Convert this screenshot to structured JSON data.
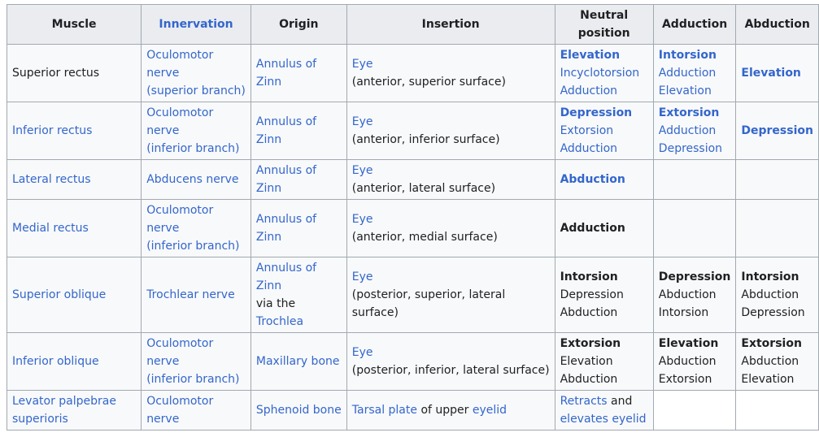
{
  "headers": {
    "muscle": "Muscle",
    "innervation": "Innervation",
    "origin": "Origin",
    "insertion": "Insertion",
    "neutral_line1": "Neutral",
    "neutral_line2": "position",
    "adduction": "Adduction",
    "abduction": "Abduction"
  },
  "rows": [
    {
      "muscle": [
        "Superior rectus"
      ],
      "innervation": [
        "Oculomotor",
        "nerve",
        "(superior branch)"
      ],
      "origin": [
        "Annulus of",
        "Zinn"
      ],
      "insertion": [
        "Eye",
        "(anterior, superior surface)"
      ],
      "neutral": [
        "Elevation",
        "Incyclotorsion",
        "Adduction"
      ],
      "adduction": [
        "Intorsion",
        "Adduction",
        "Elevation"
      ],
      "abduction": [
        "Elevation"
      ]
    },
    {
      "muscle": [
        "Inferior rectus"
      ],
      "innervation": [
        "Oculomotor",
        "nerve",
        "(inferior branch)"
      ],
      "origin": [
        "Annulus of",
        "Zinn"
      ],
      "insertion": [
        "Eye",
        "(anterior, inferior surface)"
      ],
      "neutral": [
        "Depression",
        "Extorsion",
        "Adduction"
      ],
      "adduction": [
        "Extorsion",
        "Adduction",
        "Depression"
      ],
      "abduction": [
        "Depression"
      ]
    },
    {
      "muscle": [
        "Lateral rectus"
      ],
      "innervation": [
        "Abducens nerve"
      ],
      "origin": [
        "Annulus of",
        "Zinn"
      ],
      "insertion": [
        "Eye",
        "(anterior, lateral surface)"
      ],
      "neutral": [
        "Abduction"
      ]
    },
    {
      "muscle": [
        "Medial rectus"
      ],
      "innervation": [
        "Oculomotor",
        "nerve",
        "(inferior branch)"
      ],
      "origin": [
        "Annulus of",
        "Zinn"
      ],
      "insertion": [
        "Eye",
        "(anterior, medial surface)"
      ],
      "neutral": [
        "Adduction"
      ]
    },
    {
      "muscle": [
        "Superior oblique"
      ],
      "innervation": [
        "Trochlear nerve"
      ],
      "origin": [
        "Annulus of",
        "Zinn",
        "via the",
        "Trochlea"
      ],
      "insertion": [
        "Eye",
        "(posterior, superior, lateral",
        "surface)"
      ],
      "neutral": [
        "Intorsion",
        "Depression",
        "Abduction"
      ],
      "adduction": [
        "Depression",
        "Abduction",
        "Intorsion"
      ],
      "abduction": [
        "Intorsion",
        "Abduction",
        "Depression"
      ]
    },
    {
      "muscle": [
        "Inferior oblique"
      ],
      "innervation": [
        "Oculomotor",
        "nerve",
        "(inferior branch)"
      ],
      "origin": [
        "Maxillary bone"
      ],
      "insertion": [
        "Eye",
        "(posterior, inferior, lateral surface)"
      ],
      "neutral": [
        "Extorsion",
        "Elevation",
        "Abduction"
      ],
      "adduction": [
        "Elevation",
        "Abduction",
        "Extorsion"
      ],
      "abduction": [
        "Extorsion",
        "Abduction",
        "Elevation"
      ]
    },
    {
      "muscle": [
        "Levator palpebrae",
        "superioris"
      ],
      "innervation": [
        "Oculomotor",
        "nerve"
      ],
      "origin": [
        "Sphenoid bone"
      ],
      "insertion": {
        "link1": "Tarsal plate",
        "text": " of upper ",
        "link2": "eyelid"
      },
      "neutral": {
        "link1": "Retracts",
        "text": " and",
        "link2": "elevates eyelid"
      }
    }
  ],
  "colors": {
    "link": "#3366cc",
    "text": "#202122",
    "border": "#a2a9b1",
    "header_bg": "#eaecf0",
    "cell_bg": "#f8f9fa"
  }
}
